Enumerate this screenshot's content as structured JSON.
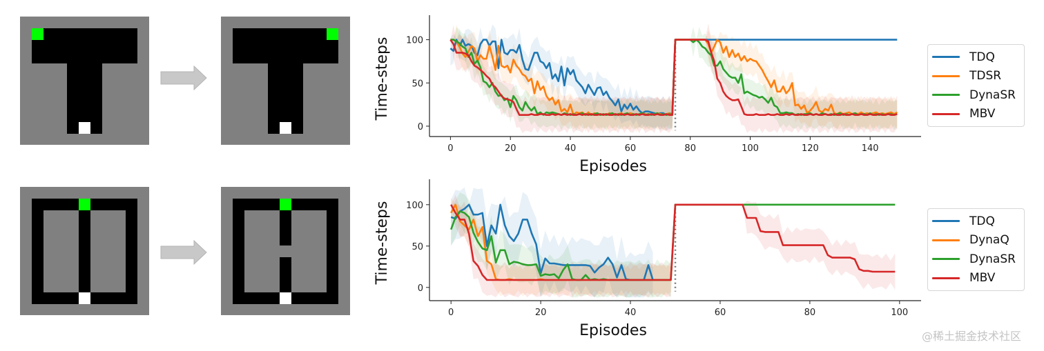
{
  "mazes": {
    "top_left": {
      "name": "t-maze-before",
      "goal": [
        1,
        1
      ]
    },
    "top_right": {
      "name": "t-maze-after",
      "goal": [
        9,
        1
      ]
    },
    "bottom_left": {
      "name": "loop-maze-before",
      "goal": [
        5,
        1
      ]
    },
    "bottom_right": {
      "name": "loop-maze-after-blocked",
      "goal": [
        5,
        1
      ]
    }
  },
  "colors": {
    "TDQ": "#1f77b4",
    "TDSR": "#ff7f0e",
    "DynaQ": "#ff7f0e",
    "DynaSR": "#2ca02c",
    "MBV": "#d62728",
    "wall": "#808080",
    "path": "#000000",
    "goal": "#00ff00",
    "start": "#ffffff",
    "arrow": "#c8c8c8"
  },
  "watermark": "@稀土掘金技术社区",
  "chart_data": [
    {
      "type": "line",
      "title": "",
      "xlabel": "Episodes",
      "ylabel": "Time-steps",
      "xlim": [
        -7,
        157
      ],
      "ylim": [
        -12,
        122
      ],
      "xticks": [
        0,
        20,
        40,
        60,
        80,
        100,
        120,
        140
      ],
      "yticks": [
        0,
        50,
        100
      ],
      "vline": 75,
      "legend_placement": "right",
      "series": [
        {
          "name": "TDQ",
          "x_start": 0,
          "values": [
            90,
            87,
            100,
            92,
            100,
            93,
            95,
            93,
            85,
            82,
            95,
            100,
            100,
            93,
            98,
            98,
            67,
            100,
            85,
            83,
            88,
            88,
            85,
            94,
            77,
            66,
            65,
            75,
            85,
            85,
            75,
            73,
            67,
            73,
            55,
            60,
            52,
            69,
            47,
            67,
            60,
            65,
            53,
            49,
            45,
            38,
            48,
            42,
            36,
            44,
            45,
            36,
            40,
            33,
            29,
            24,
            31,
            17,
            25,
            20,
            26,
            19,
            23,
            18,
            15,
            17,
            17,
            16,
            15,
            14,
            15,
            15,
            13,
            15,
            14,
            100,
            100,
            100,
            100,
            100,
            100,
            100,
            100,
            100,
            100,
            100,
            100,
            100,
            100,
            100,
            100,
            100,
            100,
            100,
            100,
            100,
            100,
            100,
            100,
            100,
            100,
            100,
            100,
            100,
            100,
            100,
            100,
            100,
            100,
            100,
            100,
            100,
            100,
            100,
            100,
            100,
            100,
            100,
            100,
            100,
            100,
            100,
            100,
            100,
            100,
            100,
            100,
            100,
            100,
            100,
            100,
            100,
            100,
            100,
            100,
            100,
            100,
            100,
            100,
            100,
            100,
            100,
            100,
            100,
            100,
            100,
            100,
            100,
            100,
            100
          ],
          "band": 20
        },
        {
          "name": "TDSR",
          "x_start": 0,
          "values": [
            100,
            100,
            98,
            92,
            84,
            80,
            86,
            93,
            90,
            75,
            82,
            78,
            78,
            93,
            80,
            65,
            93,
            70,
            68,
            70,
            62,
            77,
            70,
            66,
            60,
            58,
            52,
            55,
            38,
            52,
            42,
            46,
            35,
            30,
            33,
            25,
            30,
            17,
            20,
            16,
            25,
            13,
            16,
            15,
            16,
            13,
            16,
            13,
            15,
            14,
            13,
            14,
            13,
            15,
            14,
            13,
            14,
            15,
            13,
            14,
            15,
            14,
            13,
            14,
            15,
            14,
            13,
            14,
            13,
            15,
            14,
            13,
            14,
            15,
            13,
            100,
            100,
            100,
            100,
            100,
            100,
            100,
            100,
            100,
            100,
            100,
            95,
            85,
            92,
            100,
            97,
            85,
            92,
            80,
            88,
            80,
            84,
            76,
            81,
            75,
            78,
            76,
            75,
            70,
            65,
            58,
            52,
            45,
            53,
            40,
            40,
            46,
            38,
            42,
            50,
            24,
            25,
            20,
            24,
            15,
            18,
            22,
            28,
            18,
            16,
            20,
            18,
            25,
            15,
            14,
            16,
            14,
            15,
            16,
            14,
            15,
            14,
            16,
            14,
            15,
            14,
            15,
            16,
            14,
            15,
            14,
            15,
            16,
            14,
            16
          ],
          "band": 20
        },
        {
          "name": "DynaSR",
          "x_start": 0,
          "values": [
            100,
            100,
            98,
            96,
            92,
            90,
            80,
            85,
            72,
            76,
            68,
            52,
            50,
            45,
            50,
            40,
            35,
            36,
            30,
            32,
            22,
            35,
            30,
            22,
            18,
            28,
            22,
            18,
            22,
            14,
            16,
            13,
            16,
            15,
            16,
            15,
            14,
            13,
            15,
            14,
            13,
            14,
            13,
            14,
            15,
            13,
            14,
            13,
            14,
            15,
            13,
            14,
            13,
            14,
            15,
            13,
            14,
            13,
            14,
            15,
            13,
            14,
            13,
            14,
            15,
            13,
            14,
            13,
            14,
            15,
            13,
            14,
            13,
            14,
            13,
            100,
            100,
            100,
            100,
            100,
            100,
            97,
            100,
            97,
            92,
            90,
            85,
            82,
            70,
            70,
            75,
            66,
            62,
            58,
            56,
            56,
            50,
            60,
            38,
            40,
            38,
            36,
            35,
            33,
            34,
            31,
            27,
            33,
            24,
            22,
            15,
            15,
            16,
            15,
            15,
            13,
            14,
            13,
            14,
            14,
            15,
            13,
            14,
            13,
            15,
            14,
            13,
            14,
            13,
            14,
            15,
            13,
            14,
            13,
            14,
            15,
            13,
            14,
            14,
            13,
            15,
            13,
            14,
            13,
            14,
            13,
            14,
            14,
            13,
            14
          ],
          "band": 18
        },
        {
          "name": "MBV",
          "x_start": 0,
          "values": [
            100,
            95,
            85,
            85,
            85,
            84,
            82,
            75,
            70,
            68,
            65,
            62,
            58,
            55,
            48,
            45,
            40,
            35,
            32,
            31,
            30,
            28,
            20,
            13,
            13,
            13,
            13,
            14,
            13,
            13,
            14,
            14,
            13,
            13,
            14,
            13,
            14,
            13,
            14,
            13,
            14,
            13,
            13,
            14,
            13,
            14,
            13,
            14,
            13,
            13,
            14,
            13,
            14,
            13,
            13,
            14,
            13,
            14,
            13,
            14,
            13,
            13,
            14,
            13,
            14,
            13,
            13,
            14,
            13,
            14,
            13,
            13,
            14,
            13,
            13,
            100,
            100,
            100,
            100,
            100,
            100,
            100,
            100,
            100,
            100,
            100,
            98,
            85,
            75,
            55,
            50,
            40,
            35,
            32,
            30,
            30,
            31,
            23,
            14,
            13,
            13,
            13,
            14,
            13,
            13,
            13,
            14,
            13,
            13,
            14,
            13,
            13,
            14,
            13,
            14,
            13,
            13,
            14,
            13,
            13,
            14,
            13,
            14,
            13,
            13,
            14,
            13,
            13,
            14,
            13,
            13,
            14,
            13,
            13,
            14,
            13,
            13,
            14,
            13,
            13,
            14,
            13,
            13,
            14,
            13,
            13,
            14,
            13,
            13,
            14
          ],
          "band": 22
        }
      ]
    },
    {
      "type": "line",
      "title": "",
      "xlabel": "Episodes",
      "ylabel": "Time-steps",
      "xlim": [
        -4.8,
        104.8
      ],
      "ylim": [
        -16,
        124
      ],
      "xticks": [
        0,
        20,
        40,
        60,
        80,
        100
      ],
      "yticks": [
        0,
        50,
        100
      ],
      "vline": 50,
      "legend_placement": "right",
      "series": [
        {
          "name": "TDQ",
          "x_start": 0,
          "values": [
            85,
            83,
            92,
            95,
            100,
            88,
            88,
            90,
            50,
            75,
            65,
            100,
            75,
            62,
            56,
            65,
            82,
            82,
            65,
            52,
            17,
            35,
            29,
            29,
            28,
            27,
            27,
            27,
            27,
            27,
            27,
            26,
            18,
            24,
            28,
            36,
            28,
            12,
            27,
            10,
            9,
            9,
            9,
            9,
            27,
            9
          ],
          "band": 35
        },
        {
          "name": "DynaQ",
          "x_start": 0,
          "values": [
            90,
            100,
            80,
            75,
            70,
            82,
            62,
            73,
            32,
            28,
            10,
            9,
            9,
            10,
            9,
            9,
            9,
            9,
            9,
            9,
            10,
            9,
            9,
            9,
            9,
            9,
            9,
            9,
            9,
            9,
            9,
            9,
            9,
            9,
            9,
            9,
            9,
            9,
            9,
            9,
            9,
            9,
            9,
            9,
            9,
            9,
            9,
            9,
            9,
            9
          ],
          "band": 20
        },
        {
          "name": "DynaSR",
          "x_start": 0,
          "values": [
            70,
            85,
            92,
            90,
            85,
            66,
            55,
            47,
            45,
            62,
            30,
            45,
            45,
            28,
            31,
            30,
            28,
            27,
            27,
            28,
            14,
            16,
            15,
            16,
            11,
            21,
            28,
            10,
            9,
            9,
            15,
            9,
            10,
            9,
            10,
            9,
            9,
            9,
            9,
            9,
            9,
            9,
            9,
            9,
            9,
            9,
            9,
            9,
            9,
            9,
            100,
            100,
            100,
            100,
            100,
            100,
            100,
            100,
            100,
            100,
            100,
            100,
            100,
            100,
            100,
            100,
            100,
            100,
            100,
            100,
            100,
            100,
            100,
            100,
            100,
            100,
            100,
            100,
            100,
            100,
            100,
            100,
            100,
            100,
            100,
            100,
            100,
            100,
            100,
            100,
            100,
            100,
            100,
            100,
            100,
            100,
            100,
            100,
            100,
            100
          ],
          "band": 25
        },
        {
          "name": "MBV",
          "x_start": 0,
          "values": [
            100,
            90,
            82,
            82,
            65,
            32,
            26,
            15,
            9,
            9,
            9,
            9,
            9,
            9,
            9,
            9,
            9,
            9,
            9,
            9,
            9,
            9,
            9,
            9,
            9,
            9,
            9,
            9,
            9,
            9,
            9,
            9,
            9,
            9,
            9,
            9,
            9,
            9,
            9,
            9,
            9,
            9,
            9,
            9,
            9,
            9,
            9,
            9,
            9,
            9,
            100,
            100,
            100,
            100,
            100,
            100,
            100,
            100,
            100,
            100,
            100,
            100,
            100,
            100,
            100,
            100,
            84,
            84,
            84,
            68,
            67,
            67,
            67,
            67,
            51,
            51,
            51,
            51,
            51,
            51,
            51,
            51,
            51,
            51,
            39,
            36,
            36,
            36,
            36,
            36,
            34,
            22,
            20,
            20,
            19,
            19,
            19,
            19,
            19,
            19
          ],
          "band": 22
        }
      ]
    }
  ],
  "legends": [
    {
      "items": [
        {
          "label": "TDQ",
          "color": "#1f77b4"
        },
        {
          "label": "TDSR",
          "color": "#ff7f0e"
        },
        {
          "label": "DynaSR",
          "color": "#2ca02c"
        },
        {
          "label": "MBV",
          "color": "#d62728"
        }
      ]
    },
    {
      "items": [
        {
          "label": "TDQ",
          "color": "#1f77b4"
        },
        {
          "label": "DynaQ",
          "color": "#ff7f0e"
        },
        {
          "label": "DynaSR",
          "color": "#2ca02c"
        },
        {
          "label": "MBV",
          "color": "#d62728"
        }
      ]
    }
  ]
}
